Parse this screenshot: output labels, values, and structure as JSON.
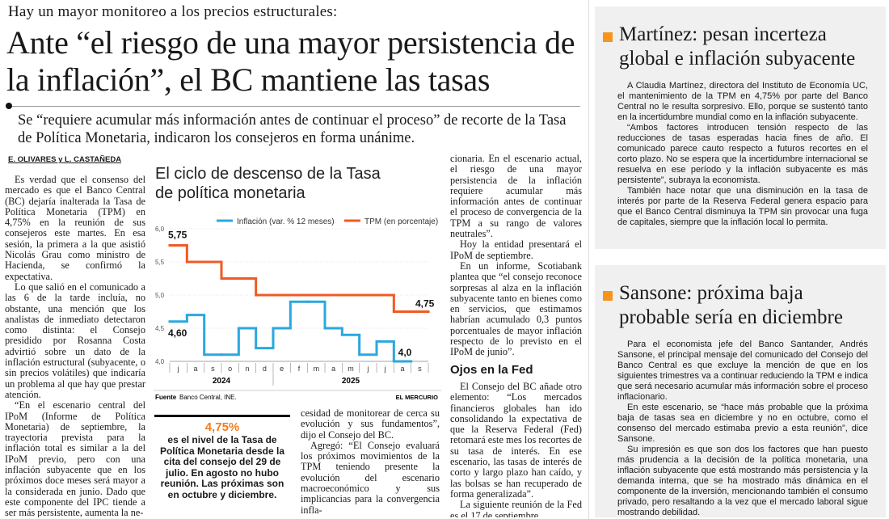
{
  "header": {
    "kicker": "Hay un mayor monitoreo a los precios estructurales:",
    "headline": "Ante “el riesgo de una mayor persistencia de la inflación”, el BC mantiene las tasas",
    "deck": "Se “requiere acumular más información antes de continuar el proceso” de recorte de la Tasa de Política Monetaria, indicaron los consejeros en forma unánime.",
    "byline": "E. OLIVARES y L. CASTAÑEDA"
  },
  "article": {
    "col1": [
      "Es verdad que el consenso del mercado es que el Banco Central (BC) dejaría inalterada la Tasa de Política Monetaria (TPM) en 4,75% en la reunión de sus consejeros este martes. En esa sesión, la primera a la que asistió Nicolás Grau como ministro de Hacienda, se confirmó la expectativa.",
      "Lo que salió en el comunicado a las 6 de la tarde incluía, no obstante, una mención que los analistas de inmediato detectaron como distinta: el Consejo presidido por Rosanna Costa advirtió sobre un dato de la inflación estructural (subyacente, o sin precios volátiles) que indicaría un problema al que hay que prestar atención.",
      "“En el escenario central del IPoM (Informe de Política Monetaria) de septiembre, la trayectoria prevista para la inflación total es similar a la del IPoM previo, pero con una inflación subyacente que en los próximos doce meses será mayor a la considerada en junio. Dado que este componente del IPC tiende a ser más persistente, aumenta la ne-"
    ],
    "col2": [
      "cesidad de monitorear de cerca su evolución y sus fundamentos”, dijo el Consejo del BC.",
      "Agregó: “El Consejo evaluará los próximos movimientos de la TPM teniendo presente la evolución del escenario macroeconómico y sus implicancias para la convergencia infla-"
    ],
    "col3": [
      "cionaria. En el escenario actual, el riesgo de una mayor persistencia de la inflación requiere acumular más información antes de continuar el proceso de convergencia de la TPM a su rango de valores neutrales”.",
      "Hoy la entidad presentará el IPoM de septiembre.",
      "En un informe, Scotiabank plantea que “el consejo reconoce sorpresas al alza en la inflación subyacente tanto en bienes como en servicios, que estimamos habrían acumulado 0,3 puntos porcentuales de mayor inflación respecto de lo previsto en el IPoM de junio”."
    ],
    "subheading": "Ojos en la Fed",
    "col3_after": [
      "El Consejo del BC añade otro elemento: “Los mercados financieros globales han ido consolidando la expectativa de que la Reserva Federal (Fed) retomará este mes los recortes de su tasa de interés. En ese escenario, las tasas de interés de corto y largo plazo han caído, y las bolsas se han recuperado de forma generalizada”.",
      "La siguiente reunión de la Fed es el 17 de septiembre."
    ]
  },
  "highlight": {
    "figure": "4,75%",
    "text": "es el nivel de la Tasa de Política Monetaria desde la cita del consejo del 29 de julio. En agosto no hubo reunión. Las próximas son en octubre y diciembre."
  },
  "chart_data": {
    "type": "step-line",
    "title": "El ciclo de descenso de la Tasa de política monetaria",
    "categories": [
      "j",
      "a",
      "s",
      "o",
      "n",
      "d",
      "e",
      "f",
      "m",
      "a",
      "m",
      "j",
      "j",
      "a",
      "s"
    ],
    "years": [
      "2024",
      "2025"
    ],
    "series": [
      {
        "name": "Inflación (var. % 12 meses)",
        "color": "#2aa8df",
        "values": [
          4.6,
          4.7,
          4.1,
          4.1,
          4.5,
          4.2,
          4.5,
          4.9,
          4.9,
          4.5,
          4.4,
          4.1,
          4.3,
          4.0,
          null
        ],
        "value_labels": [
          "4,60",
          null,
          null,
          null,
          null,
          null,
          null,
          null,
          null,
          null,
          null,
          null,
          null,
          "4,0",
          null
        ]
      },
      {
        "name": "TPM (en porcentaje)",
        "color": "#f15a24",
        "values": [
          5.75,
          5.5,
          5.5,
          5.25,
          5.25,
          5.0,
          5.0,
          5.0,
          5.0,
          5.0,
          5.0,
          5.0,
          5.0,
          4.75,
          4.75
        ],
        "value_labels": [
          "5,75",
          null,
          null,
          null,
          null,
          null,
          null,
          null,
          null,
          null,
          null,
          null,
          null,
          null,
          "4,75"
        ]
      }
    ],
    "ylim": [
      4.0,
      6.0
    ],
    "yticks": [
      {
        "value": 4,
        "label": "4,0"
      },
      {
        "value": 4.5,
        "label": "4,5"
      },
      {
        "value": 5,
        "label": "5,0"
      },
      {
        "value": 5.5,
        "label": "5,5"
      },
      {
        "value": 6,
        "label": "6,0"
      }
    ],
    "grid": true,
    "source_label": "Fuente",
    "source": "Banco Central, INE.",
    "credit": "EL MERCURIO"
  },
  "sidebars": [
    {
      "title": "Martínez: pesan incerteza global e inflación subyacente",
      "paragraphs": [
        "A Claudia Martínez, directora del Instituto de Economía UC, el mantenimiento de la TPM en 4,75% por parte del Banco Central no le resulta sorpresivo. Ello, porque se sustentó tanto en la incertidumbre mundial como en la inflación subyacente.",
        "“Ambos factores introducen tensión respecto de las reducciones de tasas esperadas hacia fines de año. El comunicado parece cauto respecto a futuros recortes en el corto plazo. No se espera que la incertidumbre internacional se resuelva en ese período y la inflación subyacente es más persistente”, subraya la economista.",
        "También hace notar que una disminución en la tasa de interés por parte de la Reserva Federal genera espacio para que el Banco Central disminuya la TPM sin provocar una fuga de capitales, siempre que la inflación local lo permita."
      ]
    },
    {
      "title": "Sansone: próxima baja probable sería en diciembre",
      "paragraphs": [
        "Para el economista jefe del Banco Santander, Andrés Sansone, el principal mensaje del comunicado del Consejo del Banco Central es que excluye la mención de que en los siguientes trimestres va a continuar reduciendo la TPM e indica que será necesario acumular más información sobre el proceso inflacionario.",
        "En este escenario, se “hace más probable que la próxima baja de tasas sea en diciembre y no en octubre, como el consenso del mercado estimaba previo a esta reunión”, dice Sansone.",
        "Su impresión es que son dos los factores que han puesto más prudencia a la decisión de la política monetaria, una inflación subyacente que está mostrando más persistencia y la demanda interna, que se ha mostrado más dinámica en el componente de la inversión, mencionando también el consumo privado, pero resaltando a la vez que el mercado laboral sigue mostrando debilidad."
      ]
    }
  ]
}
